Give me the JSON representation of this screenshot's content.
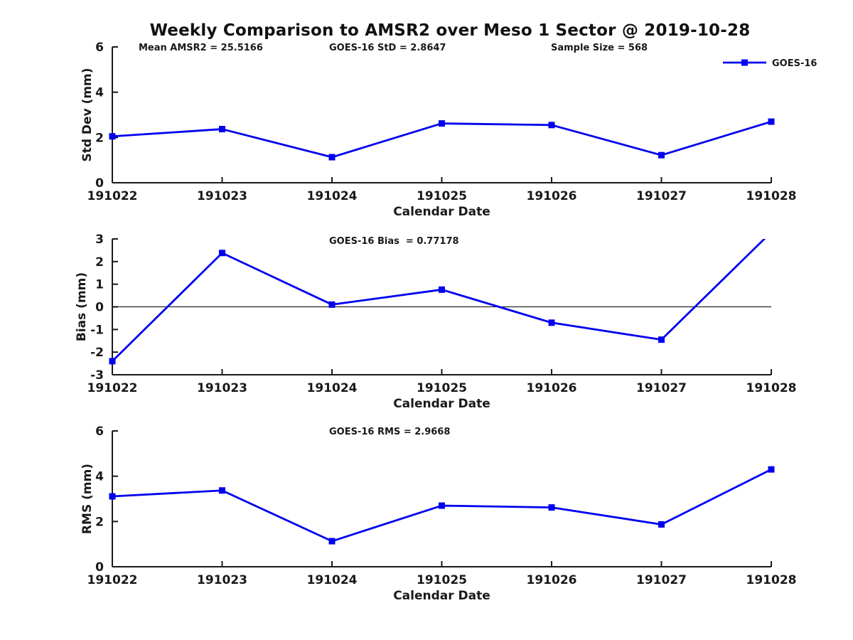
{
  "title": "Weekly Comparison to AMSR2 over Meso 1 Sector @ 2019-10-28",
  "legend": {
    "label": "GOES-16"
  },
  "colors": {
    "series_blue": "#0000EE",
    "axis_black": "#191919",
    "zero_line_black": "#000000",
    "background": "#FFFFFF"
  },
  "chart_data": [
    {
      "type": "line",
      "panel": "std_dev",
      "title_annotations": [
        {
          "text": "Mean AMSR2 = 25.5166"
        },
        {
          "text": "GOES-16 StD = 2.8647"
        },
        {
          "text": "Sample Size = 568"
        }
      ],
      "xlabel": "Calendar Date",
      "ylabel": "Std Dev (mm)",
      "ylim": [
        0,
        6
      ],
      "yticks": [
        0,
        2,
        4,
        6
      ],
      "grid": false,
      "legend_position": "top-right",
      "categories": [
        "191022",
        "191023",
        "191024",
        "191025",
        "191026",
        "191027",
        "191028"
      ],
      "series": [
        {
          "name": "GOES-16",
          "values": [
            2.05,
            2.37,
            1.13,
            2.62,
            2.55,
            1.22,
            2.7
          ]
        }
      ]
    },
    {
      "type": "line",
      "panel": "bias",
      "title_annotations": [
        {
          "text": "GOES-16 Bias  = 0.77178"
        }
      ],
      "xlabel": "Calendar Date",
      "ylabel": "Bias (mm)",
      "ylim": [
        -3,
        3
      ],
      "yticks": [
        -3,
        -2,
        -1,
        0,
        1,
        2,
        3
      ],
      "zero_line": true,
      "grid": false,
      "categories": [
        "191022",
        "191023",
        "191024",
        "191025",
        "191026",
        "191027",
        "191028"
      ],
      "series": [
        {
          "name": "GOES-16",
          "values": [
            -2.4,
            2.38,
            0.1,
            0.76,
            -0.7,
            -1.45,
            3.3
          ]
        }
      ]
    },
    {
      "type": "line",
      "panel": "rms",
      "title_annotations": [
        {
          "text": "GOES-16 RMS = 2.9668"
        }
      ],
      "xlabel": "Calendar Date",
      "ylabel": "RMS (mm)",
      "ylim": [
        0,
        6
      ],
      "yticks": [
        0,
        2,
        4,
        6
      ],
      "grid": false,
      "categories": [
        "191022",
        "191023",
        "191024",
        "191025",
        "191026",
        "191027",
        "191028"
      ],
      "series": [
        {
          "name": "GOES-16",
          "values": [
            3.11,
            3.37,
            1.13,
            2.7,
            2.62,
            1.87,
            4.3
          ]
        }
      ]
    }
  ]
}
